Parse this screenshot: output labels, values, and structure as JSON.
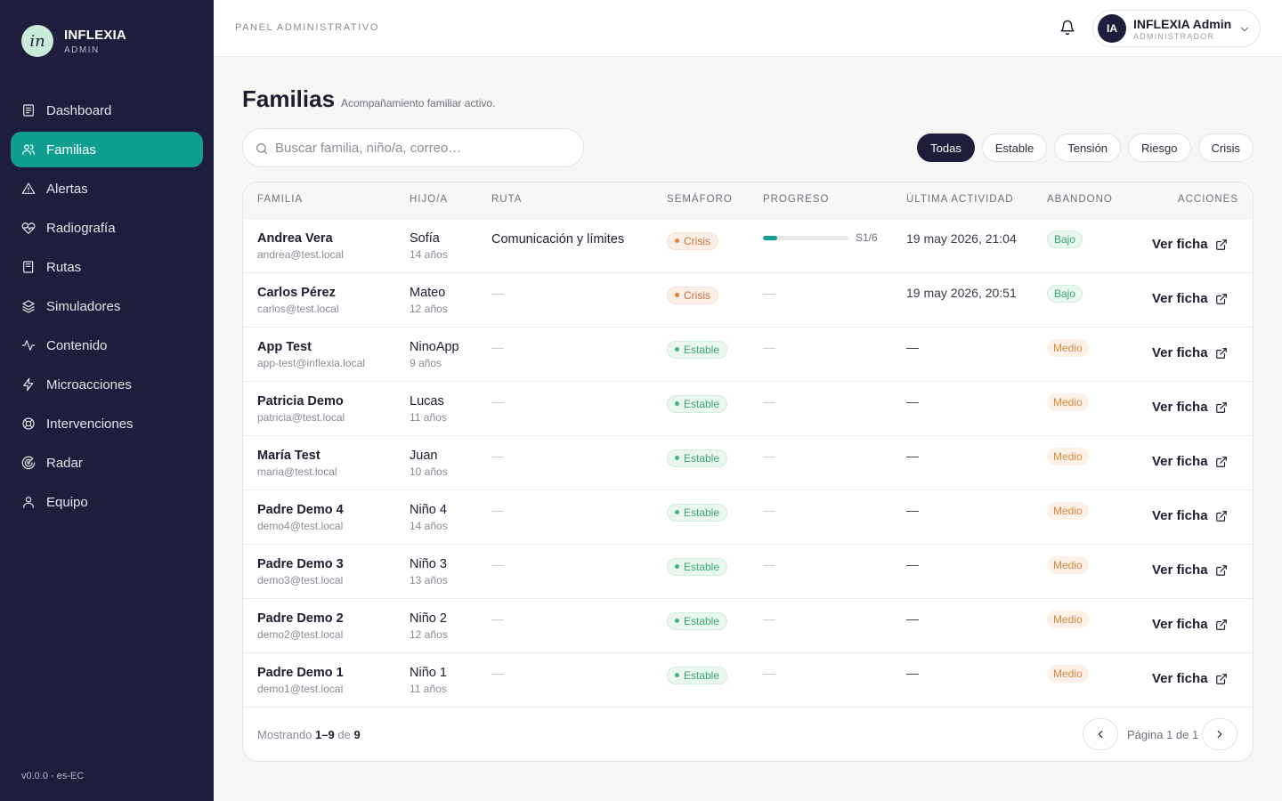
{
  "brand": {
    "logo": "in",
    "name": "INFLEXIA",
    "sub": "ADMIN"
  },
  "nav": [
    {
      "label": "Dashboard",
      "icon": "dashboard-icon",
      "active": false
    },
    {
      "label": "Familias",
      "icon": "users-icon",
      "active": true
    },
    {
      "label": "Alertas",
      "icon": "alert-triangle-icon",
      "active": false
    },
    {
      "label": "Radiografía",
      "icon": "heart-pulse-icon",
      "active": false
    },
    {
      "label": "Rutas",
      "icon": "book-icon",
      "active": false
    },
    {
      "label": "Simuladores",
      "icon": "layers-icon",
      "active": false
    },
    {
      "label": "Contenido",
      "icon": "activity-icon",
      "active": false
    },
    {
      "label": "Microacciones",
      "icon": "zap-icon",
      "active": false
    },
    {
      "label": "Intervenciones",
      "icon": "lifebuoy-icon",
      "active": false
    },
    {
      "label": "Radar",
      "icon": "radar-icon",
      "active": false
    },
    {
      "label": "Equipo",
      "icon": "user-icon",
      "active": false
    }
  ],
  "version": "v0.0.0 · es-EC",
  "header": {
    "title": "PANEL ADMINISTRATIVO",
    "user": {
      "initials": "IA",
      "name": "INFLEXIA Admin",
      "role": "ADMINISTRADOR"
    }
  },
  "page": {
    "title": "Familias",
    "subtitle": "Acompañamiento familiar activo."
  },
  "search": {
    "placeholder": "Buscar familia, niño/a, correo…",
    "value": ""
  },
  "filters": [
    {
      "label": "Todas",
      "active": true
    },
    {
      "label": "Estable",
      "active": false
    },
    {
      "label": "Tensión",
      "active": false
    },
    {
      "label": "Riesgo",
      "active": false
    },
    {
      "label": "Crisis",
      "active": false
    }
  ],
  "table": {
    "columns": [
      "FAMILIA",
      "HIJO/A",
      "RUTA",
      "SEMÁFORO",
      "PROGRESO",
      "ÚLTIMA ACTIVIDAD",
      "ABANDONO",
      "ACCIONES"
    ],
    "action_label": "Ver ficha",
    "rows": [
      {
        "name": "Andrea Vera",
        "email": "andrea@test.local",
        "child": "Sofía",
        "age": "14 años",
        "route": "Comunicación y límites",
        "status": "Crisis",
        "status_key": "crisis",
        "progress": 0.17,
        "progress_label": "S1/6",
        "activity": "19 may 2026, 21:04",
        "risk": "Bajo",
        "risk_key": "bajo"
      },
      {
        "name": "Carlos Pérez",
        "email": "carlos@test.local",
        "child": "Mateo",
        "age": "12 años",
        "route": "—",
        "status": "Crisis",
        "status_key": "crisis",
        "progress": null,
        "progress_label": "—",
        "activity": "19 may 2026, 20:51",
        "risk": "Bajo",
        "risk_key": "bajo"
      },
      {
        "name": "App Test",
        "email": "app-test@inflexia.local",
        "child": "NinoApp",
        "age": "9 años",
        "route": "—",
        "status": "Estable",
        "status_key": "estable",
        "progress": null,
        "progress_label": "—",
        "activity": "—",
        "risk": "Medio",
        "risk_key": "medio"
      },
      {
        "name": "Patricia Demo",
        "email": "patricia@test.local",
        "child": "Lucas",
        "age": "11 años",
        "route": "—",
        "status": "Estable",
        "status_key": "estable",
        "progress": null,
        "progress_label": "—",
        "activity": "—",
        "risk": "Medio",
        "risk_key": "medio"
      },
      {
        "name": "María Test",
        "email": "maria@test.local",
        "child": "Juan",
        "age": "10 años",
        "route": "—",
        "status": "Estable",
        "status_key": "estable",
        "progress": null,
        "progress_label": "—",
        "activity": "—",
        "risk": "Medio",
        "risk_key": "medio"
      },
      {
        "name": "Padre Demo 4",
        "email": "demo4@test.local",
        "child": "Niño 4",
        "age": "14 años",
        "route": "—",
        "status": "Estable",
        "status_key": "estable",
        "progress": null,
        "progress_label": "—",
        "activity": "—",
        "risk": "Medio",
        "risk_key": "medio"
      },
      {
        "name": "Padre Demo 3",
        "email": "demo3@test.local",
        "child": "Niño 3",
        "age": "13 años",
        "route": "—",
        "status": "Estable",
        "status_key": "estable",
        "progress": null,
        "progress_label": "—",
        "activity": "—",
        "risk": "Medio",
        "risk_key": "medio"
      },
      {
        "name": "Padre Demo 2",
        "email": "demo2@test.local",
        "child": "Niño 2",
        "age": "12 años",
        "route": "—",
        "status": "Estable",
        "status_key": "estable",
        "progress": null,
        "progress_label": "—",
        "activity": "—",
        "risk": "Medio",
        "risk_key": "medio"
      },
      {
        "name": "Padre Demo 1",
        "email": "demo1@test.local",
        "child": "Niño 1",
        "age": "11 años",
        "route": "—",
        "status": "Estable",
        "status_key": "estable",
        "progress": null,
        "progress_label": "—",
        "activity": "—",
        "risk": "Medio",
        "risk_key": "medio"
      }
    ]
  },
  "pagination": {
    "showing_prefix": "Mostrando",
    "range": "1–9",
    "of_word": "de",
    "total": "9",
    "page_label": "Página 1 de 1"
  },
  "colors": {
    "sidebar": "#1e1d3c",
    "accent": "#0f9e8f",
    "crisis": "#de7f45",
    "estable": "#47b47a",
    "medio": "#d3893f"
  }
}
